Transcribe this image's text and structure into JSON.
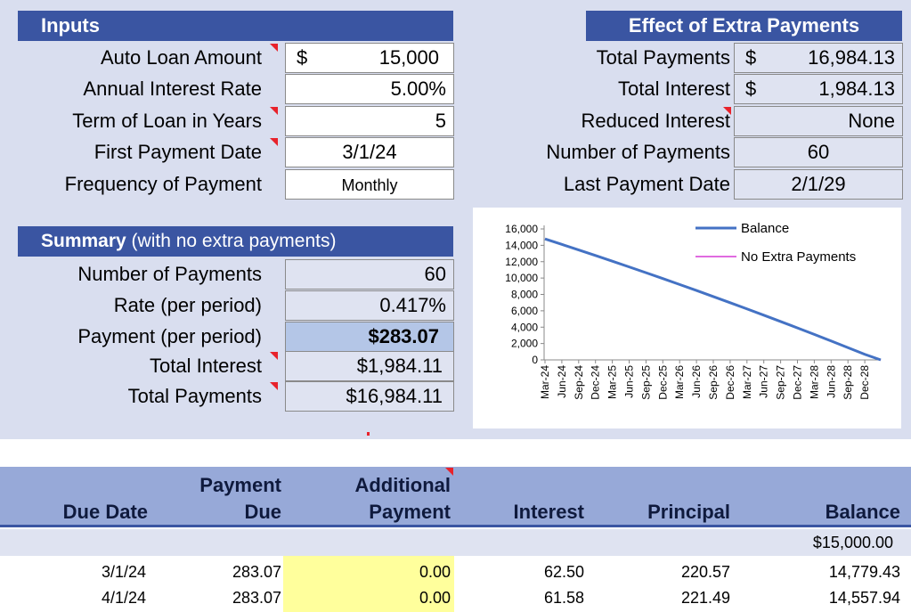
{
  "inputs": {
    "header": "Inputs",
    "rows": [
      {
        "label": "Auto Loan Amount",
        "currency": "$",
        "value": "15,000"
      },
      {
        "label": "Annual Interest Rate",
        "currency": "",
        "value": "5.00%"
      },
      {
        "label": "Term of Loan in Years",
        "currency": "",
        "value": "5"
      },
      {
        "label": "First Payment Date",
        "currency": "",
        "value": "3/1/24"
      },
      {
        "label": "Frequency of Payment",
        "currency": "",
        "value": "Monthly"
      }
    ]
  },
  "effect": {
    "header": "Effect of Extra Payments",
    "rows": [
      {
        "label": "Total Payments",
        "currency": "$",
        "value": "16,984.13"
      },
      {
        "label": "Total Interest",
        "currency": "$",
        "value": "1,984.13"
      },
      {
        "label": "Reduced Interest",
        "currency": "",
        "value": "None"
      },
      {
        "label": "Number of Payments",
        "currency": "",
        "value": "60"
      },
      {
        "label": "Last Payment Date",
        "currency": "",
        "value": "2/1/29"
      }
    ]
  },
  "summary": {
    "header_bold": "Summary",
    "header_rest": " (with no extra payments)",
    "rows": [
      {
        "label": "Number of Payments",
        "value": "60"
      },
      {
        "label": "Rate (per period)",
        "value": "0.417%"
      },
      {
        "label": "Payment (per period)",
        "value": "$283.07"
      },
      {
        "label": "Total Interest",
        "value": "$1,984.11"
      },
      {
        "label": "Total Payments",
        "value": "$16,984.11"
      }
    ]
  },
  "chart_data": {
    "type": "line",
    "title": "",
    "xlabel": "",
    "ylabel": "",
    "ylim": [
      0,
      16000
    ],
    "y_ticks": [
      "0",
      "2,000",
      "4,000",
      "6,000",
      "8,000",
      "10,000",
      "12,000",
      "14,000",
      "16,000"
    ],
    "categories": [
      "Mar-24",
      "Jun-24",
      "Sep-24",
      "Dec-24",
      "Mar-25",
      "Jun-25",
      "Sep-25",
      "Dec-25",
      "Mar-26",
      "Jun-26",
      "Sep-26",
      "Dec-26",
      "Mar-27",
      "Jun-27",
      "Sep-27",
      "Dec-27",
      "Mar-28",
      "Jun-28",
      "Sep-28",
      "Dec-28"
    ],
    "series": [
      {
        "name": "Balance",
        "color": "#4472c4",
        "values": [
          14779,
          14111,
          13435,
          12751,
          12060,
          11360,
          10652,
          9936,
          9212,
          8479,
          7738,
          6989,
          6231,
          5464,
          4689,
          3905,
          3112,
          2310,
          1499,
          680
        ]
      },
      {
        "name": "No Extra Payments",
        "color": "#d63ad6",
        "values": [
          14779,
          14111,
          13435,
          12751,
          12060,
          11360,
          10652,
          9936,
          9212,
          8479,
          7738,
          6989,
          6231,
          5464,
          4689,
          3905,
          3112,
          2310,
          1499,
          680
        ]
      }
    ],
    "end_value": 0,
    "legend_position": "top-right"
  },
  "schedule": {
    "headers": [
      {
        "line1": "",
        "line2": "Due Date"
      },
      {
        "line1": "Payment",
        "line2": "Due"
      },
      {
        "line1": "Additional",
        "line2": "Payment"
      },
      {
        "line1": "",
        "line2": "Interest"
      },
      {
        "line1": "",
        "line2": "Principal"
      },
      {
        "line1": "",
        "line2": "Balance"
      }
    ],
    "initial_balance": "$15,000.00",
    "rows": [
      {
        "date": "3/1/24",
        "due": "283.07",
        "extra": "0.00",
        "interest": "62.50",
        "principal": "220.57",
        "balance": "14,779.43"
      },
      {
        "date": "4/1/24",
        "due": "283.07",
        "extra": "0.00",
        "interest": "61.58",
        "principal": "221.49",
        "balance": "14,557.94"
      }
    ]
  }
}
